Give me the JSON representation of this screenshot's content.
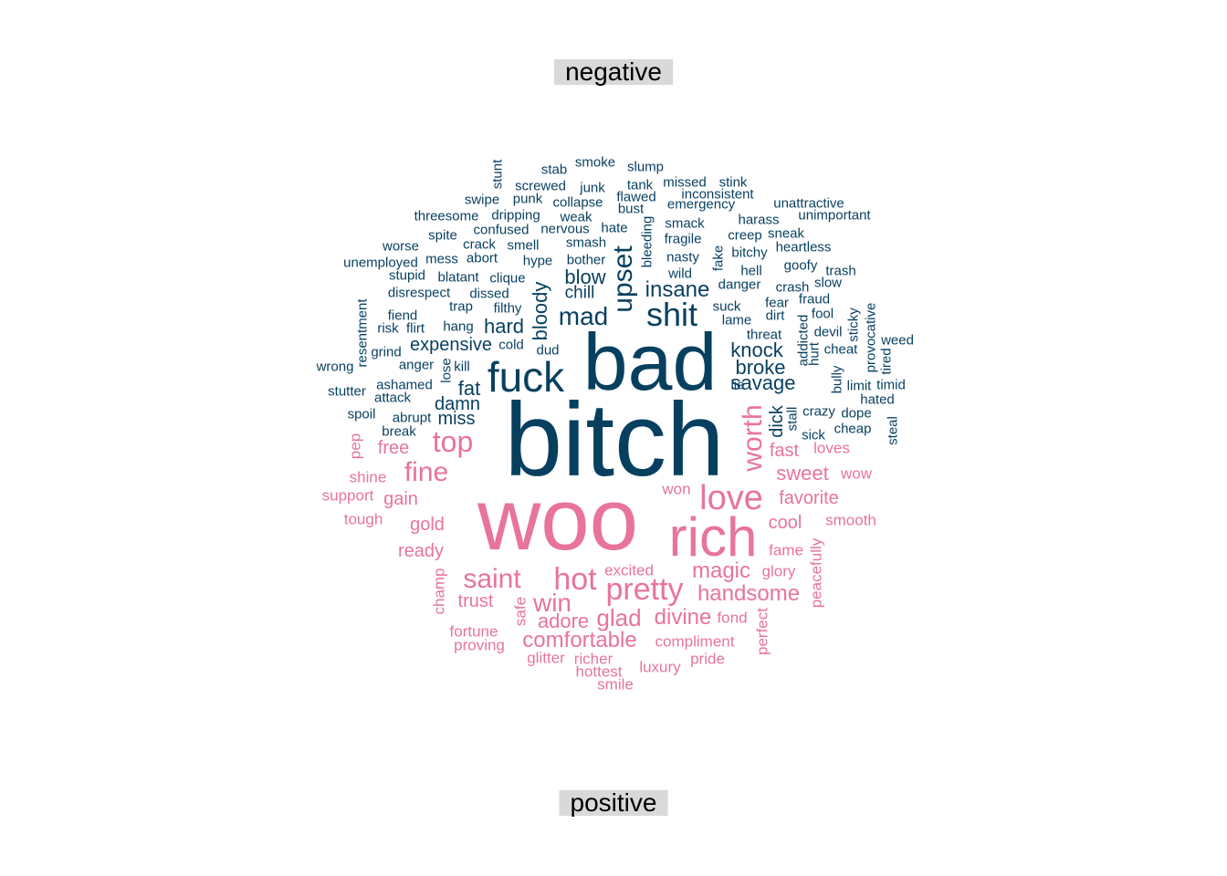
{
  "chart_data": {
    "type": "wordcloud",
    "labels": {
      "negative": "negative",
      "positive": "positive"
    },
    "colors": {
      "negative": "#073f5f",
      "positive": "#e8749a"
    },
    "negative_words": [
      [
        "bitch",
        114,
        673,
        483,
        0
      ],
      [
        "bad",
        88,
        712,
        397,
        0
      ],
      [
        "fuck",
        46,
        576,
        413,
        0
      ],
      [
        "shit",
        36,
        736,
        345,
        0
      ],
      [
        "upset",
        30,
        683,
        306,
        1
      ],
      [
        "mad",
        28,
        639,
        347,
        0
      ],
      [
        "insane",
        24,
        742,
        318,
        0
      ],
      [
        "blow",
        22,
        641,
        304,
        0
      ],
      [
        "bloody",
        22,
        592,
        341,
        1
      ],
      [
        "savage",
        22,
        836,
        420,
        0
      ],
      [
        "knock",
        22,
        829,
        384,
        0
      ],
      [
        "broke",
        22,
        833,
        403,
        0
      ],
      [
        "hard",
        22,
        552,
        358,
        0
      ],
      [
        "expensive",
        20,
        494,
        378,
        0
      ],
      [
        "damn",
        20,
        501,
        443,
        0
      ],
      [
        "fat",
        22,
        514,
        426,
        0
      ],
      [
        "miss",
        20,
        500,
        459,
        0
      ],
      [
        "chill",
        19,
        635,
        321,
        0
      ],
      [
        "dick",
        20,
        851,
        462,
        1
      ],
      [
        "stunt",
        15,
        545,
        191,
        1
      ],
      [
        "stab",
        15,
        607,
        186,
        0
      ],
      [
        "smoke",
        15,
        652,
        178,
        0
      ],
      [
        "slump",
        15,
        707,
        183,
        0
      ],
      [
        "screwed",
        15,
        592,
        204,
        0
      ],
      [
        "junk",
        15,
        649,
        206,
        0
      ],
      [
        "tank",
        15,
        701,
        203,
        0
      ],
      [
        "missed",
        15,
        750,
        200,
        0
      ],
      [
        "stink",
        15,
        803,
        200,
        0
      ],
      [
        "swipe",
        15,
        528,
        219,
        0
      ],
      [
        "punk",
        15,
        578,
        218,
        0
      ],
      [
        "collapse",
        15,
        633,
        222,
        0
      ],
      [
        "flawed",
        15,
        697,
        216,
        0
      ],
      [
        "inconsistent",
        15,
        786,
        213,
        0
      ],
      [
        "emergency",
        15,
        768,
        224,
        0
      ],
      [
        "unattractive",
        15,
        886,
        223,
        0
      ],
      [
        "bust",
        15,
        691,
        229,
        0
      ],
      [
        "threesome",
        15,
        489,
        237,
        0
      ],
      [
        "dripping",
        15,
        565,
        236,
        0
      ],
      [
        "weak",
        15,
        631,
        238,
        0
      ],
      [
        "harass",
        15,
        831,
        241,
        0
      ],
      [
        "unimportant",
        15,
        914,
        236,
        0
      ],
      [
        "confused",
        15,
        549,
        252,
        0
      ],
      [
        "nervous",
        15,
        619,
        251,
        0
      ],
      [
        "hate",
        15,
        673,
        250,
        0
      ],
      [
        "smack",
        15,
        750,
        245,
        0
      ],
      [
        "bleeding",
        15,
        709,
        265,
        1
      ],
      [
        "creep",
        15,
        816,
        258,
        0
      ],
      [
        "sneak",
        15,
        861,
        256,
        0
      ],
      [
        "spite",
        15,
        485,
        258,
        0
      ],
      [
        "fragile",
        15,
        748,
        262,
        0
      ],
      [
        "smash",
        15,
        642,
        266,
        0
      ],
      [
        "worse",
        15,
        439,
        270,
        0
      ],
      [
        "crack",
        15,
        525,
        268,
        0
      ],
      [
        "smell",
        15,
        573,
        269,
        0
      ],
      [
        "heartless",
        15,
        880,
        271,
        0
      ],
      [
        "bitchy",
        15,
        821,
        277,
        0
      ],
      [
        "mess",
        15,
        484,
        284,
        0
      ],
      [
        "abort",
        15,
        528,
        283,
        0
      ],
      [
        "hype",
        15,
        589,
        286,
        0
      ],
      [
        "bother",
        15,
        642,
        285,
        0
      ],
      [
        "nasty",
        15,
        748,
        282,
        0
      ],
      [
        "fake",
        15,
        787,
        283,
        1
      ],
      [
        "unemployed",
        15,
        417,
        288,
        0
      ],
      [
        "goofy",
        15,
        877,
        291,
        0
      ],
      [
        "wild",
        15,
        745,
        300,
        0
      ],
      [
        "hell",
        15,
        823,
        297,
        0
      ],
      [
        "trash",
        15,
        921,
        297,
        0
      ],
      [
        "stupid",
        15,
        446,
        302,
        0
      ],
      [
        "blatant",
        15,
        502,
        304,
        0
      ],
      [
        "clique",
        15,
        556,
        305,
        0
      ],
      [
        "slow",
        15,
        907,
        310,
        0
      ],
      [
        "danger",
        15,
        810,
        312,
        0
      ],
      [
        "crash",
        15,
        868,
        315,
        0
      ],
      [
        "disrespect",
        15,
        459,
        321,
        0
      ],
      [
        "dissed",
        15,
        536,
        322,
        0
      ],
      [
        "fraud",
        15,
        892,
        328,
        0
      ],
      [
        "fear",
        15,
        851,
        332,
        0
      ],
      [
        "provocative",
        15,
        954,
        370,
        1
      ],
      [
        "suck",
        15,
        796,
        336,
        0
      ],
      [
        "trap",
        15,
        505,
        336,
        0
      ],
      [
        "filthy",
        15,
        556,
        338,
        0
      ],
      [
        "fool",
        15,
        901,
        344,
        0
      ],
      [
        "sticky",
        15,
        935,
        356,
        1
      ],
      [
        "resentment",
        15,
        397,
        365,
        1
      ],
      [
        "fiend",
        15,
        441,
        346,
        0
      ],
      [
        "dirt",
        15,
        849,
        346,
        0
      ],
      [
        "lame",
        15,
        807,
        351,
        0
      ],
      [
        "addicted",
        15,
        880,
        373,
        1
      ],
      [
        "risk",
        15,
        425,
        360,
        0
      ],
      [
        "flirt",
        15,
        455,
        360,
        0
      ],
      [
        "hang",
        15,
        502,
        358,
        0
      ],
      [
        "devil",
        15,
        907,
        364,
        0
      ],
      [
        "threat",
        15,
        837,
        367,
        0
      ],
      [
        "weed",
        15,
        983,
        373,
        0
      ],
      [
        "cold",
        15,
        560,
        378,
        0
      ],
      [
        "grind",
        15,
        423,
        386,
        0
      ],
      [
        "dud",
        15,
        600,
        384,
        0
      ],
      [
        "hurt",
        15,
        892,
        388,
        1
      ],
      [
        "cheat",
        15,
        921,
        383,
        0
      ],
      [
        "tired",
        15,
        971,
        396,
        1
      ],
      [
        "wrong",
        15,
        367,
        402,
        0
      ],
      [
        "anger",
        15,
        456,
        400,
        0
      ],
      [
        "kill",
        15,
        506,
        402,
        0
      ],
      [
        "lose",
        15,
        489,
        406,
        1
      ],
      [
        "bully",
        15,
        917,
        416,
        1
      ],
      [
        "ashamed",
        15,
        443,
        422,
        0
      ],
      [
        "limit",
        15,
        941,
        423,
        0
      ],
      [
        "timid",
        15,
        976,
        422,
        0
      ],
      [
        "lie",
        15,
        808,
        422,
        0
      ],
      [
        "stutter",
        15,
        380,
        429,
        0
      ],
      [
        "attack",
        15,
        430,
        436,
        0
      ],
      [
        "hated",
        15,
        961,
        438,
        0
      ],
      [
        "crazy",
        15,
        897,
        451,
        0
      ],
      [
        "spoil",
        15,
        396,
        454,
        0
      ],
      [
        "abrupt",
        15,
        451,
        458,
        0
      ],
      [
        "stall",
        15,
        868,
        459,
        1
      ],
      [
        "dope",
        15,
        938,
        453,
        0
      ],
      [
        "steal",
        15,
        978,
        472,
        1
      ],
      [
        "break",
        15,
        437,
        473,
        0
      ],
      [
        "cheap",
        15,
        934,
        470,
        0
      ],
      [
        "sick",
        15,
        891,
        477,
        0
      ]
    ],
    "positive_words": [
      [
        "woo",
        96,
        611,
        570,
        0
      ],
      [
        "rich",
        60,
        781,
        589,
        0
      ],
      [
        "love",
        38,
        801,
        546,
        0
      ],
      [
        "top",
        32,
        496,
        484,
        0
      ],
      [
        "fine",
        30,
        467,
        518,
        0
      ],
      [
        "worth",
        30,
        825,
        480,
        1
      ],
      [
        "pretty",
        34,
        706,
        646,
        0
      ],
      [
        "hot",
        34,
        630,
        635,
        0
      ],
      [
        "saint",
        30,
        539,
        635,
        0
      ],
      [
        "win",
        28,
        605,
        661,
        0
      ],
      [
        "magic",
        24,
        790,
        626,
        0
      ],
      [
        "handsome",
        24,
        820,
        651,
        0
      ],
      [
        "glad",
        26,
        678,
        677,
        0
      ],
      [
        "divine",
        24,
        748,
        677,
        0
      ],
      [
        "comfortable",
        24,
        635,
        702,
        0
      ],
      [
        "adore",
        22,
        617,
        681,
        0
      ],
      [
        "sweet",
        22,
        879,
        519,
        0
      ],
      [
        "favorite",
        20,
        886,
        546,
        0
      ],
      [
        "fast",
        20,
        859,
        494,
        0
      ],
      [
        "cool",
        20,
        860,
        573,
        0
      ],
      [
        "trust",
        20,
        521,
        659,
        0
      ],
      [
        "free",
        20,
        431,
        491,
        0
      ],
      [
        "gold",
        20,
        468,
        575,
        0
      ],
      [
        "ready",
        20,
        461,
        604,
        0
      ],
      [
        "gain",
        20,
        439,
        547,
        0
      ],
      [
        "loves",
        17,
        911,
        491,
        0
      ],
      [
        "pep",
        17,
        389,
        489,
        1
      ],
      [
        "wow",
        17,
        938,
        519,
        0
      ],
      [
        "shine",
        17,
        403,
        523,
        0
      ],
      [
        "won",
        17,
        741,
        536,
        0
      ],
      [
        "support",
        17,
        381,
        543,
        0
      ],
      [
        "smooth",
        17,
        932,
        570,
        0
      ],
      [
        "tough",
        17,
        398,
        569,
        0
      ],
      [
        "fame",
        17,
        861,
        603,
        0
      ],
      [
        "peacefully",
        17,
        894,
        628,
        1
      ],
      [
        "excited",
        17,
        689,
        625,
        0
      ],
      [
        "glory",
        17,
        853,
        626,
        0
      ],
      [
        "champ",
        17,
        481,
        648,
        1
      ],
      [
        "safe",
        17,
        570,
        670,
        1
      ],
      [
        "fond",
        17,
        802,
        677,
        0
      ],
      [
        "fortune",
        17,
        519,
        692,
        0
      ],
      [
        "perfect",
        17,
        835,
        692,
        1
      ],
      [
        "compliment",
        17,
        761,
        703,
        0
      ],
      [
        "proving",
        17,
        525,
        707,
        0
      ],
      [
        "glitter",
        17,
        598,
        721,
        0
      ],
      [
        "richer",
        17,
        650,
        722,
        0
      ],
      [
        "pride",
        17,
        775,
        722,
        0
      ],
      [
        "luxury",
        17,
        723,
        731,
        0
      ],
      [
        "hottest",
        17,
        656,
        736,
        0
      ],
      [
        "smile",
        17,
        674,
        750,
        0
      ]
    ]
  }
}
